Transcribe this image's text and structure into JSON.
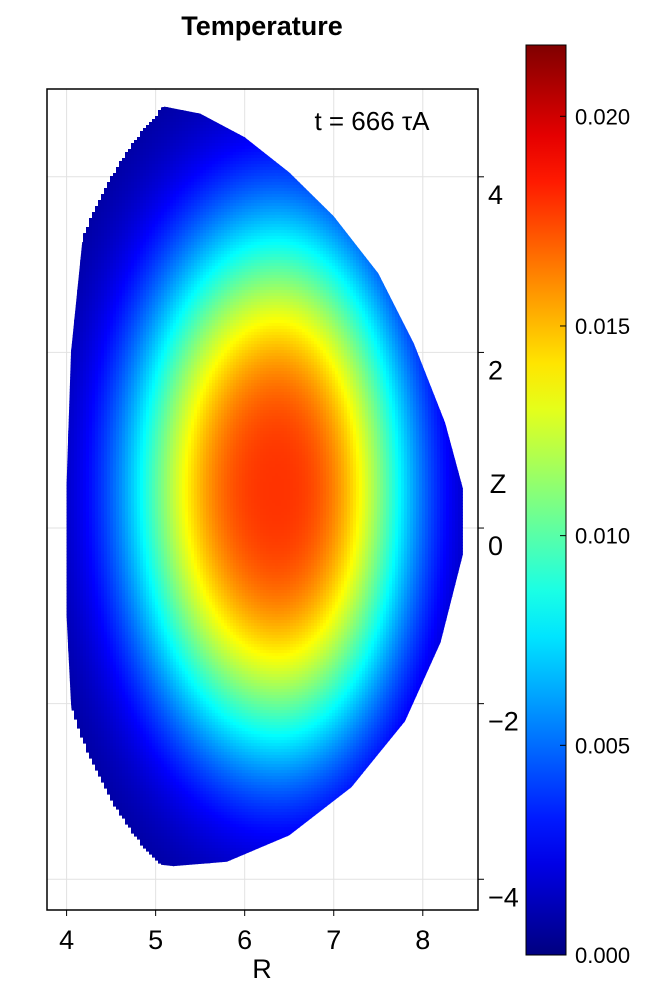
{
  "chart_data": {
    "type": "heatmap",
    "title": "Temperature",
    "xlabel": "R",
    "ylabel": "Z",
    "annotation": "t = 666 τA",
    "xlim": [
      3.78,
      8.62
    ],
    "ylim": [
      -4.35,
      5.0
    ],
    "xticks": [
      4,
      5,
      6,
      7,
      8
    ],
    "xtick_labels": [
      "4",
      "5",
      "6",
      "7",
      "8"
    ],
    "yticks": [
      -4,
      -2,
      0,
      2,
      4
    ],
    "ytick_labels": [
      "−4",
      "−2",
      "0",
      "2",
      "4"
    ],
    "grid": true,
    "colormap": "jet",
    "colorbar": {
      "range": [
        0.0,
        0.0217
      ],
      "ticks": [
        0.0,
        0.005,
        0.01,
        0.015,
        0.02
      ],
      "tick_labels": [
        "0.000",
        "0.005",
        "0.010",
        "0.015",
        "0.020"
      ]
    },
    "field": {
      "peak_value": 0.0175,
      "peak_location_RZ": [
        6.35,
        0.45
      ],
      "boundary_RZ": [
        [
          4.7,
          4.7
        ],
        [
          5.1,
          4.8
        ],
        [
          5.5,
          4.72
        ],
        [
          6.0,
          4.45
        ],
        [
          6.5,
          4.05
        ],
        [
          7.0,
          3.55
        ],
        [
          7.5,
          2.9
        ],
        [
          7.9,
          2.1
        ],
        [
          8.25,
          1.2
        ],
        [
          8.45,
          0.45
        ],
        [
          8.45,
          -0.3
        ],
        [
          8.2,
          -1.3
        ],
        [
          7.8,
          -2.2
        ],
        [
          7.2,
          -2.95
        ],
        [
          6.5,
          -3.5
        ],
        [
          5.8,
          -3.8
        ],
        [
          5.2,
          -3.85
        ],
        [
          4.75,
          -3.8
        ],
        [
          4.4,
          -3.6
        ],
        [
          4.15,
          -3.0
        ],
        [
          4.05,
          -2.0
        ],
        [
          4.0,
          -1.0
        ],
        [
          4.0,
          0.5
        ],
        [
          4.05,
          2.0
        ],
        [
          4.2,
          3.5
        ],
        [
          4.4,
          4.3
        ]
      ]
    }
  }
}
